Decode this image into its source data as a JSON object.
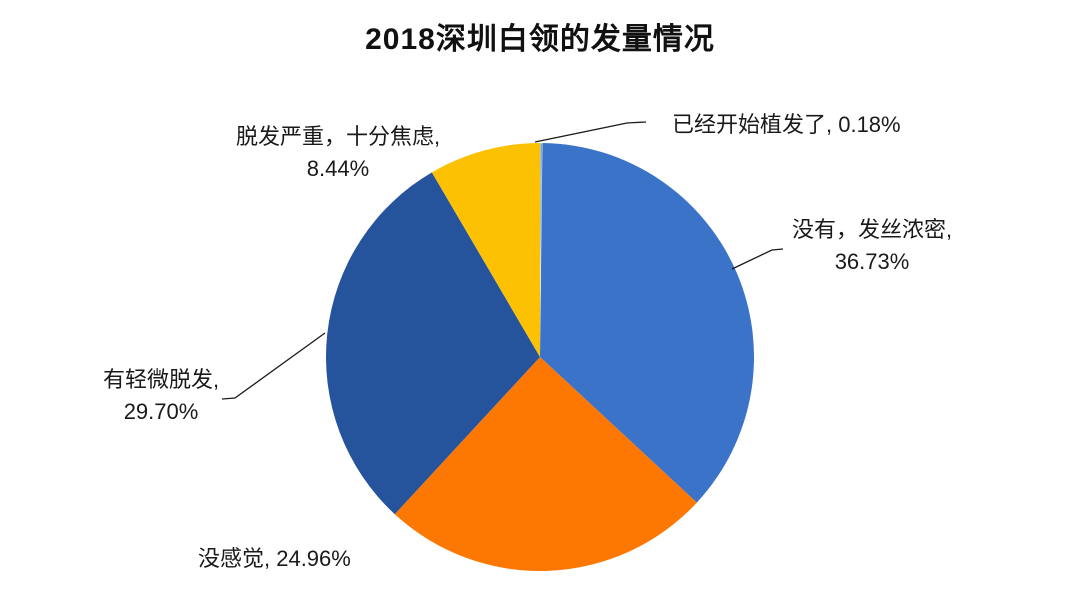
{
  "chart_data": {
    "type": "pie",
    "title": "2018深圳白领的发量情况",
    "direction": "clockwise",
    "start_angle_deg": 0,
    "legend": "none",
    "background_color": "#FFFFFF",
    "leader_line_color": "#1B1B1B",
    "slices": [
      {
        "id": "transplant",
        "label": "已经开始植发了",
        "value": 0.18,
        "display": "已经开始植发了, 0.18%",
        "lines": [
          "已经开始植发了, 0.18%"
        ],
        "color": "#6BA3DB"
      },
      {
        "id": "dense",
        "label": "没有，发丝浓密",
        "value": 36.73,
        "display": "没有，发丝浓密, 36.73%",
        "lines": [
          "没有，发丝浓密,",
          "36.73%"
        ],
        "color": "#3B73C8"
      },
      {
        "id": "nofeel",
        "label": "没感觉",
        "value": 24.96,
        "display": "没感觉, 24.96%",
        "lines": [
          "没感觉, 24.96%"
        ],
        "color": "#FD7803"
      },
      {
        "id": "slight",
        "label": "有轻微脱发",
        "value": 29.7,
        "display": "有轻微脱发, 29.70%",
        "lines": [
          "有轻微脱发,",
          "29.70%"
        ],
        "color": "#25549D"
      },
      {
        "id": "severe",
        "label": "脱发严重，十分焦虑",
        "value": 8.44,
        "display": "脱发严重，十分焦虑, 8.44%",
        "lines": [
          "脱发严重，十分焦虑,",
          "8.44%"
        ],
        "color": "#FDC103"
      }
    ]
  }
}
